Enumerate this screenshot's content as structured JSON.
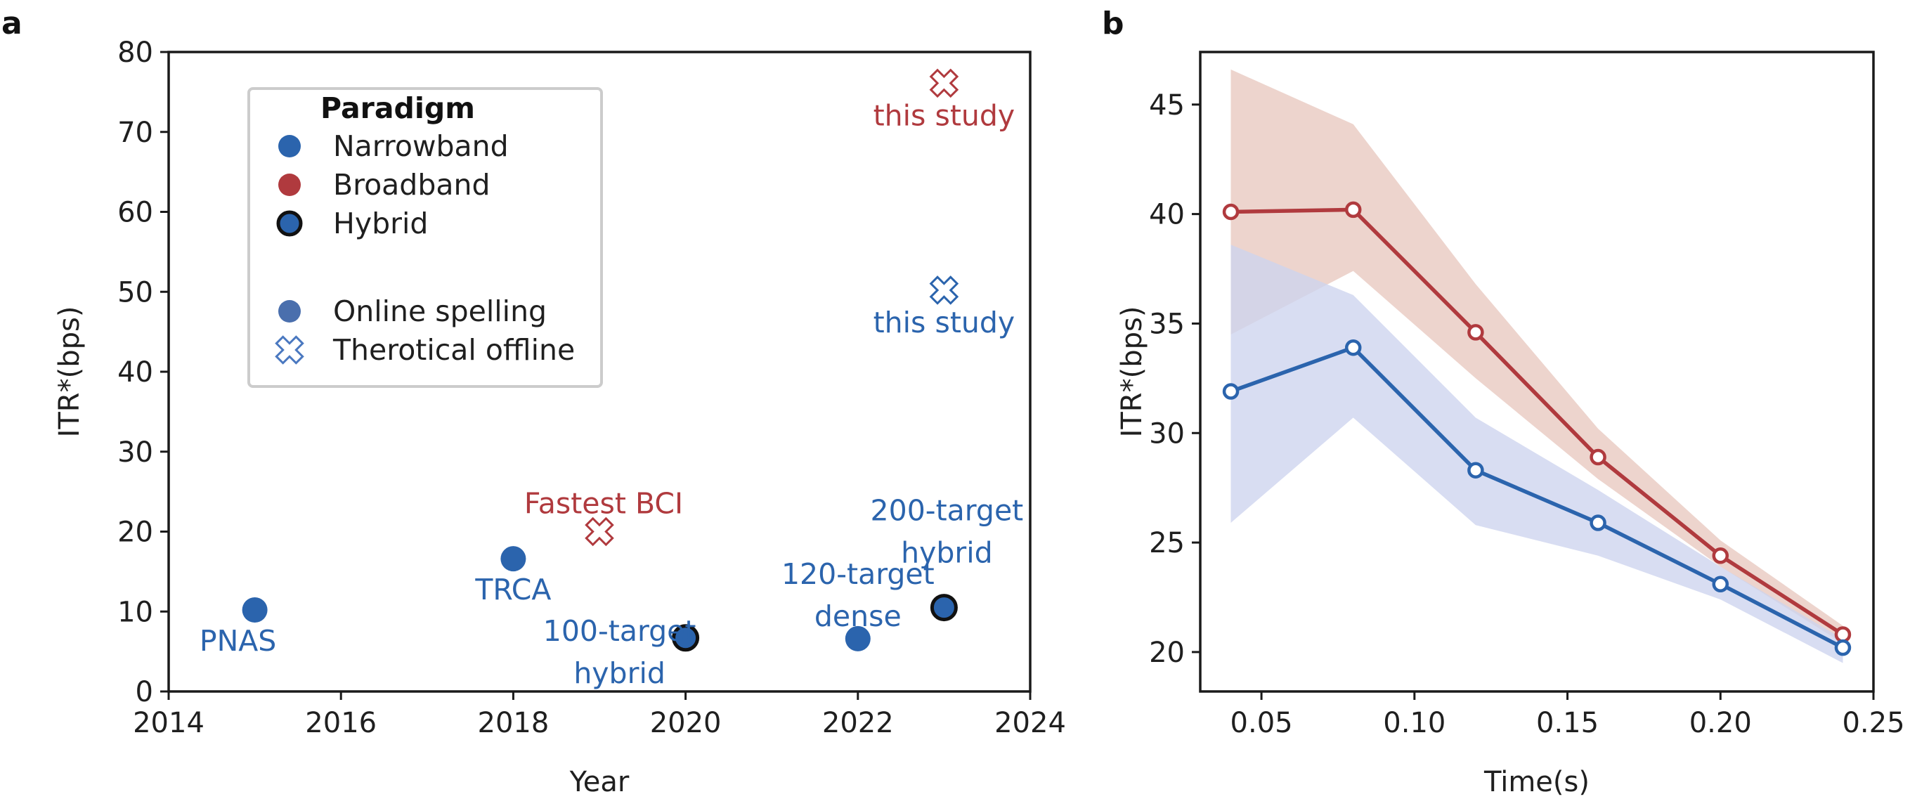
{
  "colors": {
    "narrowband": "#2b64ad",
    "broadband": "#b03a3e",
    "hybrid_edge": "#111111",
    "online_marker": "#4a6fad",
    "offline_marker": "#4a78c0",
    "band_red": "#e8c8bf",
    "band_blue": "#cdd3ee"
  },
  "chart_data": [
    {
      "panel": "a",
      "type": "scatter",
      "xlabel": "Year",
      "ylabel": "ITR*(bps)",
      "xlim": [
        2014,
        2024
      ],
      "ylim": [
        0,
        80
      ],
      "xticks": [
        2014,
        2016,
        2018,
        2020,
        2022,
        2024
      ],
      "yticks": [
        0,
        10,
        20,
        30,
        40,
        50,
        60,
        70,
        80
      ],
      "legend": {
        "placement": "upper-left",
        "title": "Paradigm",
        "entries": [
          {
            "label": "Narrowband",
            "marker": "circle",
            "kind": "narrowband"
          },
          {
            "label": "Broadband",
            "marker": "circle",
            "kind": "broadband"
          },
          {
            "label": "Hybrid",
            "marker": "circle",
            "kind": "hybrid"
          },
          {
            "label": "Online spelling",
            "marker": "circle",
            "kind": "online"
          },
          {
            "label": "Therotical offline",
            "marker": "cross",
            "kind": "offline"
          }
        ]
      },
      "points": [
        {
          "x": 2015,
          "y": 10.2,
          "kind": "narrowband",
          "marker": "circle",
          "label": [
            "PNAS"
          ],
          "label_pos": "below"
        },
        {
          "x": 2018,
          "y": 16.6,
          "kind": "narrowband",
          "marker": "circle",
          "label": [
            "TRCA"
          ],
          "label_pos": "below"
        },
        {
          "x": 2019,
          "y": 20.0,
          "kind": "broadband",
          "marker": "cross",
          "label": [
            "Fastest BCI"
          ],
          "label_pos": "above"
        },
        {
          "x": 2020,
          "y": 6.7,
          "kind": "hybrid",
          "marker": "circle",
          "label": [
            "100-target",
            "hybrid"
          ],
          "label_pos": "left"
        },
        {
          "x": 2022,
          "y": 6.6,
          "kind": "narrowband",
          "marker": "circle",
          "label": [
            "120-target",
            "dense"
          ],
          "label_pos": "above"
        },
        {
          "x": 2023,
          "y": 10.5,
          "kind": "hybrid",
          "marker": "circle",
          "label": [
            "200-target",
            "hybrid"
          ],
          "label_pos": "above"
        },
        {
          "x": 2023,
          "y": 50.2,
          "kind": "narrowband",
          "marker": "cross",
          "label": [
            "this study"
          ],
          "label_pos": "below"
        },
        {
          "x": 2023,
          "y": 76.1,
          "kind": "broadband",
          "marker": "cross",
          "label": [
            "this study"
          ],
          "label_pos": "below"
        }
      ]
    },
    {
      "panel": "b",
      "type": "line",
      "xlabel": "Time(s)",
      "ylabel": "ITR*(bps)",
      "xlim": [
        0.03,
        0.25
      ],
      "ylim": [
        18.2,
        47.4
      ],
      "xticks": [
        0.05,
        0.1,
        0.15,
        0.2,
        0.25
      ],
      "xtick_labels": [
        "0.05",
        "0.10",
        "0.15",
        "0.20",
        "0.25"
      ],
      "yticks": [
        20,
        25,
        30,
        35,
        40,
        45
      ],
      "x": [
        0.04,
        0.08,
        0.12,
        0.16,
        0.2,
        0.24
      ],
      "series": [
        {
          "name": "Broadband",
          "kind": "broadband",
          "values": [
            40.1,
            40.2,
            34.6,
            28.9,
            24.4,
            20.8
          ],
          "upper": [
            46.6,
            44.1,
            36.8,
            30.2,
            25.1,
            21.2
          ],
          "lower": [
            34.5,
            37.4,
            32.5,
            27.9,
            23.9,
            20.4
          ]
        },
        {
          "name": "Narrowband",
          "kind": "narrowband",
          "values": [
            31.9,
            33.9,
            28.3,
            25.9,
            23.1,
            20.2
          ],
          "upper": [
            38.6,
            36.3,
            30.7,
            27.4,
            23.9,
            20.6
          ],
          "lower": [
            25.9,
            30.7,
            25.8,
            24.4,
            22.4,
            19.5
          ]
        }
      ]
    }
  ]
}
